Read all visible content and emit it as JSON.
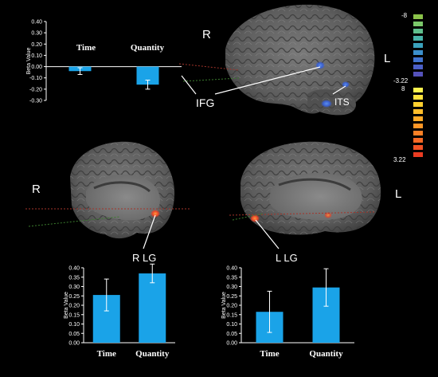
{
  "labels": {
    "hemi_right_top": "R",
    "hemi_left_top": "L",
    "hemi_right_bottom": "R",
    "hemi_left_bottom": "L",
    "roi_ifg": "IFG",
    "roi_its": "ITS",
    "roi_rlg": "R LG",
    "roi_llg": "L LG"
  },
  "colorbar": {
    "neg_top": "-8",
    "neg_bottom": "-3.22",
    "pos_top": "8",
    "pos_bottom": "3.22",
    "negative_colors": [
      "#8bc34a",
      "#7bc86a",
      "#5fbf8c",
      "#48b3a8",
      "#3aa2bd",
      "#3b8fcc",
      "#4173cf",
      "#4b5fc7",
      "#5552bb"
    ],
    "positive_colors": [
      "#fff44f",
      "#ffe23c",
      "#ffd02f",
      "#ffbd2a",
      "#ffaa27",
      "#ff9626",
      "#fc8025",
      "#f76925",
      "#f15224",
      "#eb3c22"
    ]
  },
  "chart_data": [
    {
      "type": "bar",
      "categories": [
        "Time",
        "Quantity"
      ],
      "values": [
        -0.04,
        -0.16
      ],
      "errors": [
        0.03,
        0.04
      ],
      "title": "",
      "xlabel": "",
      "ylabel": "Beta Value",
      "ylim": [
        -0.3,
        0.4
      ],
      "ticks": [
        "0.40",
        "0.30",
        "0.20",
        "0.10",
        "0.00",
        "-0.10",
        "-0.20",
        "-0.30"
      ],
      "tick_values": [
        0.4,
        0.3,
        0.2,
        0.1,
        0.0,
        -0.1,
        -0.2,
        -0.3
      ],
      "bar_color": "#1aa3e8"
    },
    {
      "type": "bar",
      "categories": [
        "Time",
        "Quantity"
      ],
      "values": [
        0.255,
        0.37
      ],
      "errors": [
        0.085,
        0.05
      ],
      "title": "",
      "xlabel": "",
      "ylabel": "Beta Value",
      "ylim": [
        0.0,
        0.4
      ],
      "ticks": [
        "0.40",
        "0.35",
        "0.30",
        "0.25",
        "0.20",
        "0.15",
        "0.10",
        "0.05",
        "0.00"
      ],
      "tick_values": [
        0.4,
        0.35,
        0.3,
        0.25,
        0.2,
        0.15,
        0.1,
        0.05,
        0.0
      ],
      "bar_color": "#1aa3e8"
    },
    {
      "type": "bar",
      "categories": [
        "Time",
        "Quantity"
      ],
      "values": [
        0.165,
        0.295
      ],
      "errors": [
        0.11,
        0.1
      ],
      "title": "",
      "xlabel": "",
      "ylabel": "Beta Value",
      "ylim": [
        0.0,
        0.4
      ],
      "ticks": [
        "0.40",
        "0.35",
        "0.30",
        "0.25",
        "0.20",
        "0.15",
        "0.10",
        "0.05",
        "0.00"
      ],
      "tick_values": [
        0.4,
        0.35,
        0.3,
        0.25,
        0.2,
        0.15,
        0.1,
        0.05,
        0.0
      ],
      "bar_color": "#1aa3e8"
    }
  ]
}
